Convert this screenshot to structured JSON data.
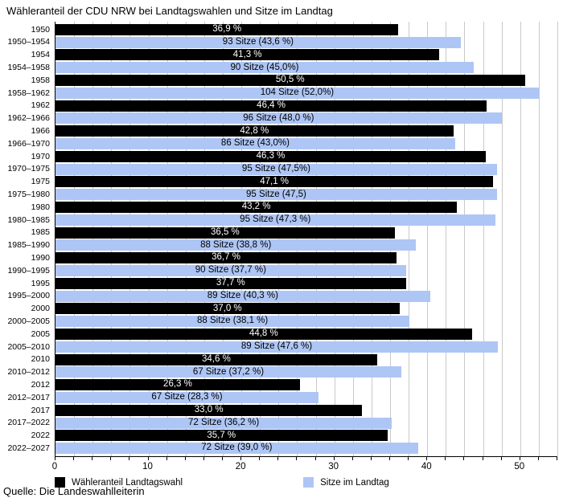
{
  "title": "Wähleranteil der CDU NRW bei Landtagswahlen und Sitze im Landtag",
  "source": "Quelle: Die Landeswahlleiterin",
  "legend": [
    {
      "label": "Wähleranteil Landtagswahl",
      "color": "#000000"
    },
    {
      "label": "Sitze im Landtag",
      "color": "#aec6f5"
    }
  ],
  "chart_data": {
    "type": "bar",
    "orientation": "horizontal",
    "title": "Wähleranteil der CDU NRW bei Landtagswahlen und Sitze im Landtag",
    "xlabel": "",
    "ylabel": "",
    "xlim": [
      0,
      54
    ],
    "gridline_step": 2,
    "tick_step": 2,
    "xtick_labels": [
      0,
      10,
      20,
      30,
      40,
      50
    ],
    "grid": true,
    "legend_position": "bottom",
    "colors": {
      "share": "#000000",
      "seats": "#aec6f5",
      "share_text": "#ffffff",
      "seats_text": "#000000",
      "grid": "#c9c9c9"
    },
    "rows": [
      {
        "label": "1950",
        "series": "share",
        "value": 36.9,
        "text": "36,9 %"
      },
      {
        "label": "1950–1954",
        "series": "seats",
        "value": 43.6,
        "text": "93 Sitze (43,6 %)"
      },
      {
        "label": "1954",
        "series": "share",
        "value": 41.3,
        "text": "41,3 %"
      },
      {
        "label": "1954–1958",
        "series": "seats",
        "value": 45.0,
        "text": "90 Sitze (45,0%)"
      },
      {
        "label": "1958",
        "series": "share",
        "value": 50.5,
        "text": "50,5 %"
      },
      {
        "label": "1958–1962",
        "series": "seats",
        "value": 52.0,
        "text": "104 Sitze (52,0%)"
      },
      {
        "label": "1962",
        "series": "share",
        "value": 46.4,
        "text": "46,4 %"
      },
      {
        "label": "1962–1966",
        "series": "seats",
        "value": 48.0,
        "text": "96 Sitze (48,0 %)"
      },
      {
        "label": "1966",
        "series": "share",
        "value": 42.8,
        "text": "42,8 %"
      },
      {
        "label": "1966–1970",
        "series": "seats",
        "value": 43.0,
        "text": "86 Sitze (43,0%)"
      },
      {
        "label": "1970",
        "series": "share",
        "value": 46.3,
        "text": "46,3 %"
      },
      {
        "label": "1970–1975",
        "series": "seats",
        "value": 47.5,
        "text": "95 Sitze (47,5%)"
      },
      {
        "label": "1975",
        "series": "share",
        "value": 47.1,
        "text": "47,1 %"
      },
      {
        "label": "1975–1980",
        "series": "seats",
        "value": 47.5,
        "text": "95 Sitze (47,5)"
      },
      {
        "label": "1980",
        "series": "share",
        "value": 43.2,
        "text": "43,2 %"
      },
      {
        "label": "1980–1985",
        "series": "seats",
        "value": 47.3,
        "text": "95 Sitze (47,3 %)"
      },
      {
        "label": "1985",
        "series": "share",
        "value": 36.5,
        "text": "36,5 %"
      },
      {
        "label": "1985–1990",
        "series": "seats",
        "value": 38.8,
        "text": "88 Sitze (38,8 %)"
      },
      {
        "label": "1990",
        "series": "share",
        "value": 36.7,
        "text": "36,7 %"
      },
      {
        "label": "1990–1995",
        "series": "seats",
        "value": 37.7,
        "text": "90 Sitze (37,7 %)"
      },
      {
        "label": "1995",
        "series": "share",
        "value": 37.7,
        "text": "37,7 %"
      },
      {
        "label": "1995–2000",
        "series": "seats",
        "value": 40.3,
        "text": "89 Sitze (40,3 %)"
      },
      {
        "label": "2000",
        "series": "share",
        "value": 37.0,
        "text": "37,0 %"
      },
      {
        "label": "2000–2005",
        "series": "seats",
        "value": 38.1,
        "text": "88 Sitze (38,1 %)"
      },
      {
        "label": "2005",
        "series": "share",
        "value": 44.8,
        "text": "44,8 %"
      },
      {
        "label": "2005–2010",
        "series": "seats",
        "value": 47.6,
        "text": "89 Sitze (47,6 %)"
      },
      {
        "label": "2010",
        "series": "share",
        "value": 34.6,
        "text": "34,6 %"
      },
      {
        "label": "2010–2012",
        "series": "seats",
        "value": 37.2,
        "text": "67 Sitze (37,2 %)"
      },
      {
        "label": "2012",
        "series": "share",
        "value": 26.3,
        "text": "26,3 %"
      },
      {
        "label": "2012–2017",
        "series": "seats",
        "value": 28.3,
        "text": "67 Sitze (28,3 %)"
      },
      {
        "label": "2017",
        "series": "share",
        "value": 33.0,
        "text": "33,0 %"
      },
      {
        "label": "2017–2022",
        "series": "seats",
        "value": 36.2,
        "text": "72 Sitze (36,2 %)"
      },
      {
        "label": "2022",
        "series": "share",
        "value": 35.7,
        "text": "35,7 %"
      },
      {
        "label": "2022–2027",
        "series": "seats",
        "value": 39.0,
        "text": "72 Sitze (39,0 %)"
      }
    ]
  }
}
